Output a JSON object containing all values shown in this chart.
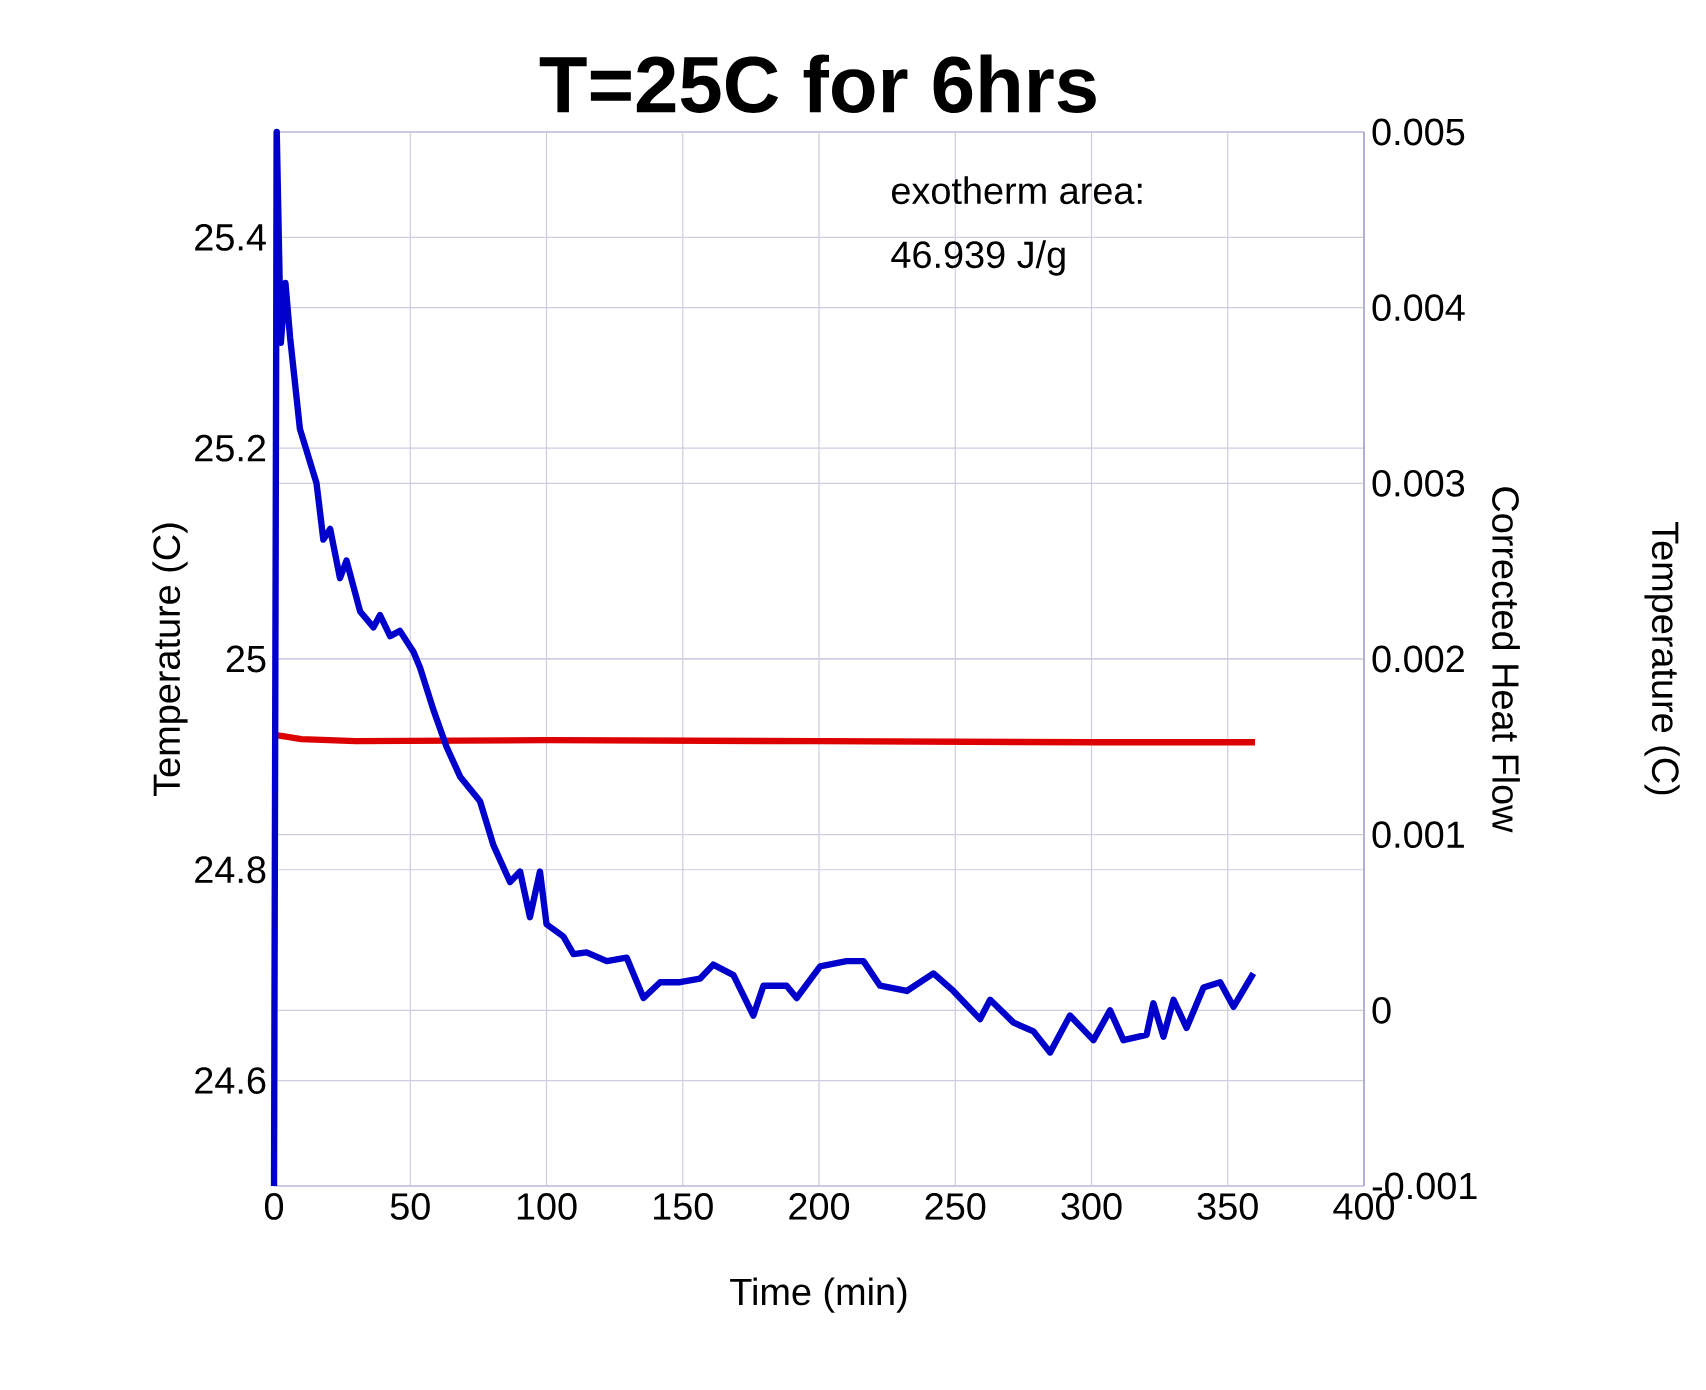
{
  "chart_data": {
    "type": "line",
    "title": "T=25C for 6hrs",
    "xlabel": "Time (min)",
    "ylabel": "Temperature (C)",
    "y2label": "Corrected Heat Flow",
    "annotations": [
      "exotherm area:",
      "46.939 J/g",
      "Temperature (C)"
    ],
    "xlim": [
      0,
      400
    ],
    "xticks": [
      0,
      50,
      100,
      150,
      200,
      250,
      300,
      350,
      400
    ],
    "ylim": [
      24.5,
      25.5
    ],
    "yticks": [
      {
        "value": 24.5,
        "label": null
      },
      24.6,
      24.8,
      25,
      25.2,
      25.4,
      {
        "value": 25.5,
        "label": null
      }
    ],
    "y2lim": [
      -0.001,
      0.005
    ],
    "y2ticks": [
      -0.001,
      0,
      0.001,
      0.002,
      0.003,
      0.004,
      0.005
    ],
    "grid": true,
    "marker": "none",
    "line_style": "solid",
    "series": [
      {
        "color": "#dd0000",
        "x": [
          0,
          5,
          10,
          30,
          100,
          200,
          300,
          360
        ],
        "values": [
          24.928,
          24.926,
          24.924,
          24.922,
          24.923,
          24.922,
          24.921,
          24.921
        ]
      },
      {
        "color": "#0000cc",
        "axis": "y2",
        "x": [
          0,
          1,
          2.5,
          4.2,
          5.9,
          9.5,
          15.6,
          18.1,
          20.6,
          24.2,
          26.6,
          31.6,
          36.5,
          38.9,
          42.6,
          46.2,
          51.2,
          53.6,
          58.5,
          63.3,
          68.3,
          75.6,
          80.5,
          86.6,
          90.3,
          93.9,
          97.6,
          100.0,
          106.2,
          109.9,
          114.7,
          122.1,
          129.4,
          135.6,
          141.7,
          149.0,
          156.3,
          161.2,
          168.6,
          175.9,
          179.6,
          188.1,
          191.8,
          200.4,
          210.1,
          216.3,
          222.4,
          232.2,
          242.0,
          249.3,
          259.1,
          262.8,
          271.4,
          278.7,
          284.8,
          292.1,
          300.7,
          306.8,
          311.7,
          320.2,
          322.7,
          326.4,
          330.1,
          334.9,
          341.1,
          347.2,
          352.1,
          359.4
        ],
        "values": [
          -0.001,
          0.005,
          0.0038,
          0.00414,
          0.00383,
          0.00331,
          0.003,
          0.00268,
          0.00274,
          0.00246,
          0.00256,
          0.00227,
          0.00218,
          0.00225,
          0.00213,
          0.00216,
          0.00204,
          0.00195,
          0.00171,
          0.0015,
          0.00133,
          0.00119,
          0.00094,
          0.00073,
          0.00079,
          0.00053,
          0.00079,
          0.00049,
          0.00042,
          0.00032,
          0.00033,
          0.00028,
          0.0003,
          7e-05,
          0.00016,
          0.00016,
          0.00018,
          0.00026,
          0.0002,
          -3e-05,
          0.00014,
          0.00014,
          7e-05,
          0.00025,
          0.00028,
          0.00028,
          0.00014,
          0.00011,
          0.00021,
          0.00011,
          -5e-05,
          6e-05,
          -7e-05,
          -0.00012,
          -0.00024,
          -3e-05,
          -0.00017,
          0.0,
          -0.00017,
          -0.00014,
          4e-05,
          -0.00015,
          6e-05,
          -0.0001,
          0.00013,
          0.00016,
          2e-05,
          0.00021
        ]
      }
    ]
  }
}
